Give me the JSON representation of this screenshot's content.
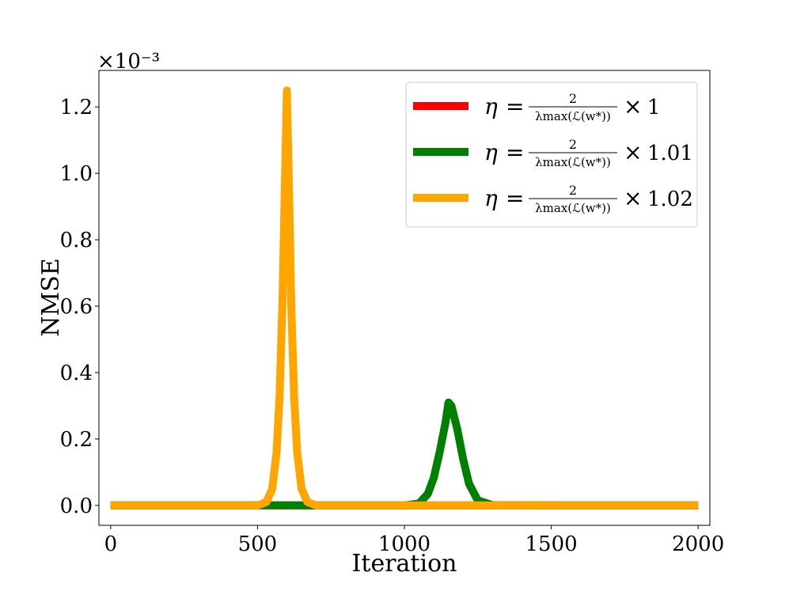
{
  "chart_data": {
    "type": "line",
    "xlabel": "Iteration",
    "ylabel": "NMSE",
    "y_scale_label": "×10⁻³",
    "xlim": [
      -40,
      2040
    ],
    "ylim": [
      -0.06,
      1.31
    ],
    "x_ticks": [
      0,
      500,
      1000,
      1500,
      2000
    ],
    "x_tick_labels": [
      "0",
      "500",
      "1000",
      "1500",
      "2000"
    ],
    "y_ticks": [
      0.0,
      0.2,
      0.4,
      0.6,
      0.8,
      1.0,
      1.2
    ],
    "y_tick_labels": [
      "0.0",
      "0.2",
      "0.4",
      "0.6",
      "0.8",
      "1.0",
      "1.2"
    ],
    "grid": false,
    "legend_position": "top-right",
    "legend": {
      "eta": "η",
      "equals": "=",
      "numerator": "2",
      "denominator": "λmax(ℒ(w*))",
      "times": "×"
    },
    "series": [
      {
        "name": "η = 2/λmax(ℒ(w*)) × 1",
        "multiplier": "1",
        "color": "#ff0000",
        "x": [
          0,
          500,
          1000,
          1500,
          2000
        ],
        "y": [
          0.0,
          0.0,
          0.0,
          0.0,
          0.0
        ]
      },
      {
        "name": "η = 2/λmax(ℒ(w*)) × 1.01",
        "multiplier": "1.01",
        "color": "#008000",
        "x": [
          0,
          500,
          1000,
          1050,
          1080,
          1100,
          1120,
          1140,
          1150,
          1160,
          1180,
          1200,
          1220,
          1250,
          1300,
          1500,
          2000
        ],
        "y": [
          0.0,
          0.0,
          0.0,
          0.006,
          0.035,
          0.083,
          0.16,
          0.25,
          0.31,
          0.3,
          0.23,
          0.14,
          0.065,
          0.015,
          0.001,
          0.0,
          0.0
        ]
      },
      {
        "name": "η = 2/λmax(ℒ(w*)) × 1.02",
        "multiplier": "1.02",
        "color": "#ffa500",
        "x": [
          0,
          500,
          530,
          550,
          565,
          575,
          585,
          592,
          597,
          600,
          603,
          608,
          615,
          625,
          635,
          650,
          670,
          700,
          1000,
          1500,
          2000
        ],
        "y": [
          0.0,
          0.0,
          0.01,
          0.05,
          0.16,
          0.33,
          0.62,
          0.92,
          1.12,
          1.25,
          1.12,
          0.92,
          0.6,
          0.32,
          0.16,
          0.05,
          0.01,
          0.0,
          0.0,
          0.0,
          0.0
        ]
      }
    ]
  }
}
